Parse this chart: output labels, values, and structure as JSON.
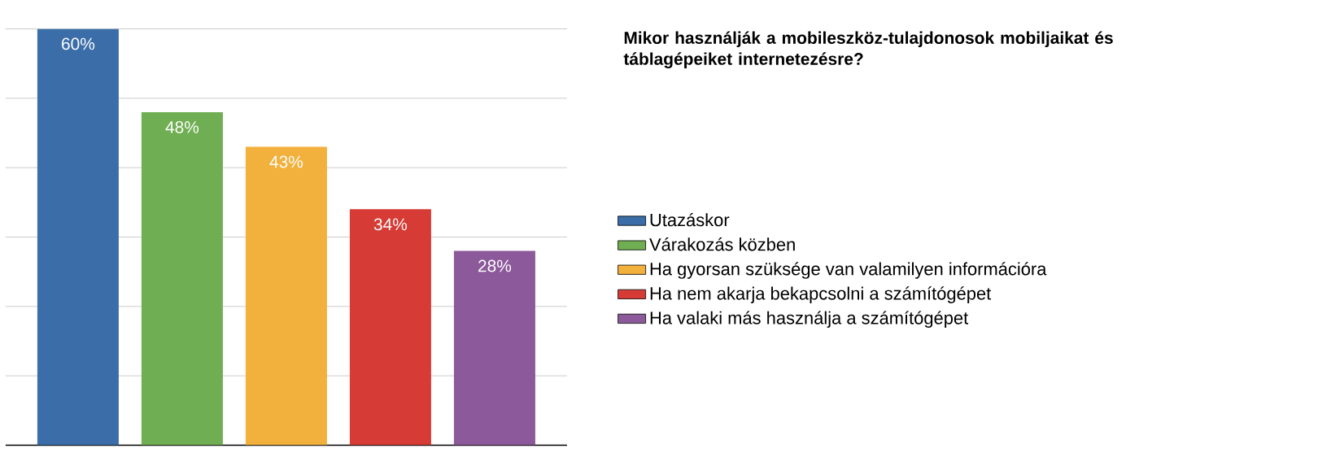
{
  "chart_data": {
    "type": "bar",
    "title": "Mikor használják a mobileszköz-tulajdonosok mobiljaikat és táblagépeiket internetezésre?",
    "categories": [
      null
    ],
    "series": [
      {
        "name": "Utazáskor",
        "color": "#3b6ea8",
        "values": [
          60
        ],
        "value_labels": [
          "60%"
        ]
      },
      {
        "name": "Várakozás közben",
        "color": "#6fae52",
        "values": [
          48
        ],
        "value_labels": [
          "48%"
        ]
      },
      {
        "name": "Ha gyorsan szüksége van valamilyen információra",
        "color": "#f2b03c",
        "values": [
          43
        ],
        "value_labels": [
          "43%"
        ]
      },
      {
        "name": "Ha nem akarja bekapcsolni a számítógépet",
        "color": "#d63b35",
        "values": [
          34
        ],
        "value_labels": [
          "34%"
        ]
      },
      {
        "name": "Ha valaki más használja a számítógépet",
        "color": "#8c5a9a",
        "values": [
          28
        ],
        "value_labels": [
          "28%"
        ]
      }
    ],
    "ylim": [
      0,
      60
    ],
    "grid": "y",
    "legend": "right"
  }
}
